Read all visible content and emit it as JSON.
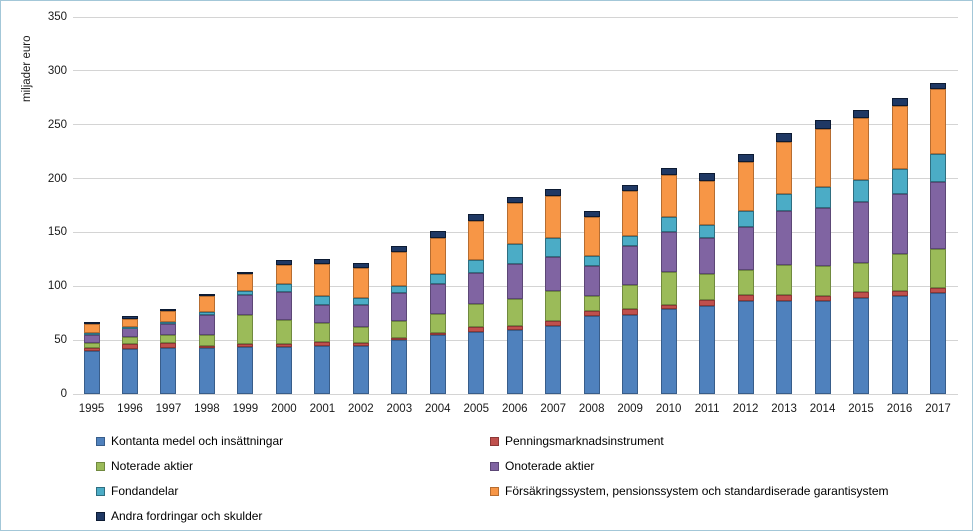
{
  "page": {
    "border_color": "#a3c7d8",
    "background": "#ffffff",
    "gridline_color": "#d4d4d4"
  },
  "chart_data": {
    "type": "bar",
    "stacked": true,
    "title": "",
    "xlabel": "",
    "ylabel": "miljader euro",
    "ylim": [
      0,
      350
    ],
    "ytick_step": 50,
    "yticks": [
      0,
      50,
      100,
      150,
      200,
      250,
      300,
      350
    ],
    "grid": true,
    "legend_position": "bottom-two-columns",
    "categories": [
      "1995",
      "1996",
      "1997",
      "1998",
      "1999",
      "2000",
      "2001",
      "2002",
      "2003",
      "2004",
      "2005",
      "2006",
      "2007",
      "2008",
      "2009",
      "2010",
      "2011",
      "2012",
      "2013",
      "2014",
      "2015",
      "2016",
      "2017"
    ],
    "series": [
      {
        "name": "Kontanta medel och insättningar",
        "color": "#4f81bd",
        "border": "#385d8a",
        "values": [
          40,
          42,
          43,
          43,
          44,
          44,
          45,
          45,
          50,
          55,
          58,
          59,
          63,
          72,
          73,
          79,
          82,
          86,
          86,
          86,
          89,
          91,
          94
        ]
      },
      {
        "name": "Penningsmarknadsinstrument",
        "color": "#c0504d",
        "border": "#8c3836",
        "values": [
          3,
          4,
          4,
          2,
          2,
          2,
          3,
          2,
          2,
          2,
          4,
          4,
          5,
          5,
          6,
          4,
          5,
          6,
          6,
          5,
          6,
          5,
          4
        ]
      },
      {
        "name": "Noterade aktier",
        "color": "#9bbb59",
        "border": "#70893f",
        "values": [
          4,
          7,
          8,
          10,
          27,
          23,
          18,
          15,
          16,
          17,
          22,
          25,
          28,
          14,
          22,
          30,
          24,
          23,
          28,
          28,
          27,
          34,
          37
        ]
      },
      {
        "name": "Onoterade aktier",
        "color": "#8064a2",
        "border": "#5c4776",
        "values": [
          8,
          8,
          10,
          18,
          19,
          26,
          17,
          21,
          26,
          28,
          28,
          33,
          31,
          28,
          36,
          37,
          34,
          40,
          50,
          54,
          56,
          56,
          62
        ]
      },
      {
        "name": "Fondandelar",
        "color": "#4bacc6",
        "border": "#2f6e80",
        "values": [
          2,
          1,
          2,
          3,
          4,
          7,
          8,
          6,
          6,
          9,
          12,
          18,
          18,
          9,
          10,
          14,
          12,
          15,
          16,
          19,
          21,
          23,
          26
        ]
      },
      {
        "name": "Försäkringssystem, pensionssystem och standardiserade garantisystem",
        "color": "#f79646",
        "border": "#b66d31",
        "values": [
          8,
          8,
          10,
          15,
          15,
          18,
          30,
          28,
          32,
          34,
          37,
          38,
          39,
          36,
          41,
          39,
          41,
          45,
          48,
          54,
          57,
          58,
          60
        ]
      },
      {
        "name": "Andra fordringar och skulder",
        "color": "#1f3864",
        "border": "#0d1b33",
        "values": [
          2,
          2,
          2,
          2,
          2,
          4,
          4,
          5,
          5,
          6,
          6,
          6,
          6,
          6,
          6,
          7,
          7,
          8,
          8,
          8,
          8,
          8,
          6
        ]
      }
    ],
    "legend_columns": [
      [
        0,
        2,
        4,
        6
      ],
      [
        1,
        3,
        5
      ]
    ]
  }
}
